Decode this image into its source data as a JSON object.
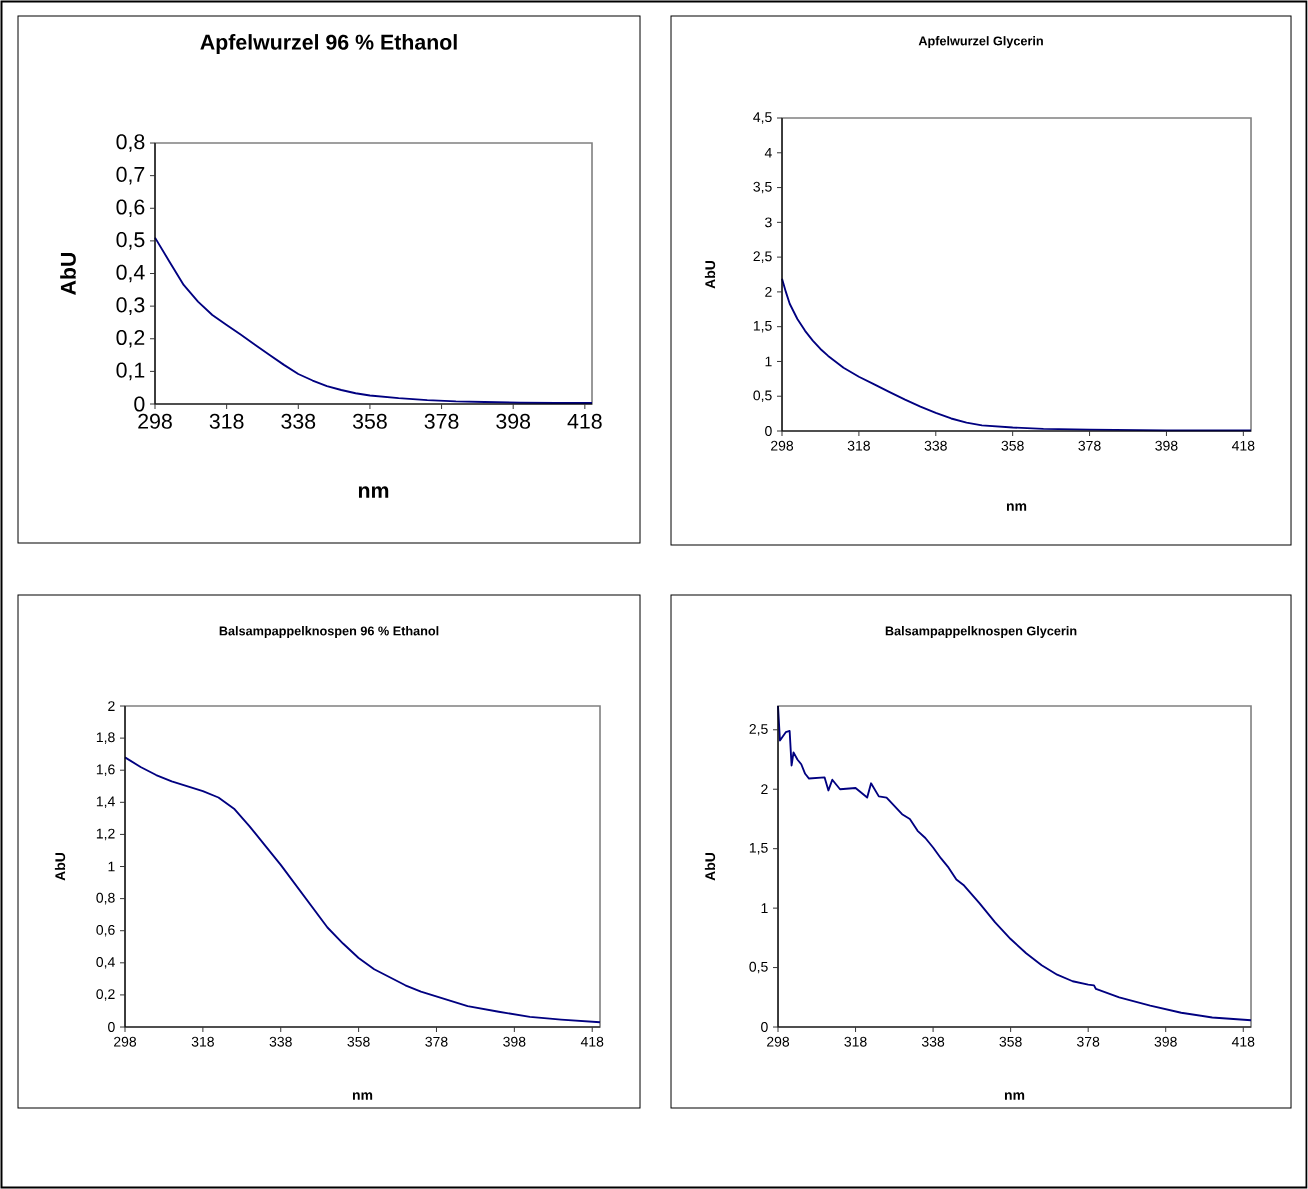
{
  "chart_data": [
    {
      "type": "line",
      "title": "Apfelwurzel 96 % Ethanol",
      "xlabel": "nm",
      "ylabel": "AbU",
      "series": [
        {
          "color": "#000080",
          "x": [
            298,
            302,
            306,
            310,
            314,
            318,
            322,
            326,
            330,
            334,
            338,
            342,
            346,
            350,
            354,
            358,
            366,
            374,
            382,
            390,
            400,
            410,
            420
          ],
          "values": [
            0.51,
            0.437,
            0.365,
            0.314,
            0.273,
            0.242,
            0.212,
            0.181,
            0.15,
            0.12,
            0.092,
            0.072,
            0.055,
            0.043,
            0.033,
            0.026,
            0.018,
            0.012,
            0.008,
            0.006,
            0.004,
            0.003,
            0.003
          ]
        }
      ],
      "xlim": [
        298,
        420
      ],
      "ylim": [
        0,
        0.8
      ],
      "xticks": [
        298,
        318,
        338,
        358,
        378,
        398,
        418
      ],
      "yticks": [
        0,
        {
          "value": 0.1,
          "label": "0,1"
        },
        {
          "value": 0.2,
          "label": "0,2"
        },
        {
          "value": 0.3,
          "label": "0,3"
        },
        {
          "value": 0.4,
          "label": "0,4"
        },
        {
          "value": 0.5,
          "label": "0,5"
        },
        {
          "value": 0.6,
          "label": "0,6"
        },
        {
          "value": 0.7,
          "label": "0,7"
        },
        {
          "value": 0.8,
          "label": "0,8"
        }
      ]
    },
    {
      "type": "line",
      "title": "Apfelwurzel Glycerin",
      "xlabel": "nm",
      "ylabel": "AbU",
      "series": [
        {
          "color": "#000080",
          "x": [
            298,
            299,
            300,
            302,
            304,
            306,
            308,
            310,
            314,
            318,
            322,
            326,
            330,
            334,
            338,
            342,
            346,
            350,
            358,
            366,
            378,
            398,
            420
          ],
          "values": [
            2.19,
            2.0,
            1.83,
            1.61,
            1.44,
            1.3,
            1.18,
            1.08,
            0.91,
            0.78,
            0.67,
            0.56,
            0.45,
            0.35,
            0.26,
            0.18,
            0.12,
            0.08,
            0.05,
            0.03,
            0.02,
            0.01,
            0.01
          ]
        }
      ],
      "xlim": [
        298,
        420
      ],
      "ylim": [
        0,
        4.5
      ],
      "xticks": [
        298,
        318,
        338,
        358,
        378,
        398,
        418
      ],
      "yticks": [
        0,
        {
          "value": 0.5,
          "label": "0,5"
        },
        1,
        {
          "value": 1.5,
          "label": "1,5"
        },
        2,
        {
          "value": 2.5,
          "label": "2,5"
        },
        3,
        {
          "value": 3.5,
          "label": "3,5"
        },
        4,
        {
          "value": 4.5,
          "label": "4,5"
        }
      ]
    },
    {
      "type": "line",
      "title": "Balsampappelknospen 96 % Ethanol",
      "xlabel": "nm",
      "ylabel": "AbU",
      "series": [
        {
          "color": "#000080",
          "x": [
            298,
            302,
            306,
            310,
            314,
            318,
            322,
            326,
            330,
            334,
            338,
            342,
            346,
            350,
            354,
            358,
            362,
            366,
            370,
            374,
            378,
            386,
            394,
            402,
            410,
            420
          ],
          "values": [
            1.68,
            1.62,
            1.57,
            1.53,
            1.5,
            1.47,
            1.43,
            1.36,
            1.25,
            1.13,
            1.01,
            0.88,
            0.75,
            0.62,
            0.52,
            0.43,
            0.36,
            0.31,
            0.26,
            0.22,
            0.19,
            0.13,
            0.095,
            0.063,
            0.046,
            0.03
          ]
        }
      ],
      "xlim": [
        298,
        420
      ],
      "ylim": [
        0,
        2
      ],
      "xticks": [
        298,
        318,
        338,
        358,
        378,
        398,
        418
      ],
      "yticks": [
        0,
        {
          "value": 0.2,
          "label": "0,2"
        },
        {
          "value": 0.4,
          "label": "0,4"
        },
        {
          "value": 0.6,
          "label": "0,6"
        },
        {
          "value": 0.8,
          "label": "0,8"
        },
        1,
        {
          "value": 1.2,
          "label": "1,2"
        },
        {
          "value": 1.4,
          "label": "1,4"
        },
        {
          "value": 1.6,
          "label": "1,6"
        },
        {
          "value": 1.8,
          "label": "1,8"
        },
        2
      ]
    },
    {
      "type": "line",
      "title": "Balsampappelknospen Glycerin",
      "xlabel": "nm",
      "ylabel": "AbU",
      "series": [
        {
          "color": "#000080",
          "x": [
            298,
            298.5,
            300,
            301,
            301.5,
            302,
            303,
            304,
            305,
            306,
            310,
            311,
            312,
            314,
            318,
            321,
            322,
            324,
            326,
            328,
            330,
            332,
            334,
            336,
            338,
            340,
            342,
            344,
            346,
            350,
            354,
            358,
            362,
            366,
            370,
            374,
            378,
            379.5,
            380,
            386,
            394,
            402,
            410,
            420
          ],
          "values": [
            2.7,
            2.41,
            2.48,
            2.49,
            2.2,
            2.31,
            2.25,
            2.21,
            2.13,
            2.09,
            2.1,
            1.99,
            2.08,
            2.0,
            2.01,
            1.93,
            2.05,
            1.94,
            1.93,
            1.86,
            1.79,
            1.75,
            1.65,
            1.59,
            1.51,
            1.42,
            1.34,
            1.24,
            1.19,
            1.04,
            0.88,
            0.74,
            0.62,
            0.52,
            0.44,
            0.385,
            0.357,
            0.35,
            0.32,
            0.25,
            0.18,
            0.12,
            0.08,
            0.057
          ]
        }
      ],
      "xlim": [
        298,
        420
      ],
      "ylim": [
        0,
        2.7
      ],
      "xticks": [
        298,
        318,
        338,
        358,
        378,
        398,
        418
      ],
      "yticks": [
        0,
        {
          "value": 0.5,
          "label": "0,5"
        },
        1,
        {
          "value": 1.5,
          "label": "1,5"
        },
        2,
        {
          "value": 2.5,
          "label": "2,5"
        }
      ]
    }
  ]
}
